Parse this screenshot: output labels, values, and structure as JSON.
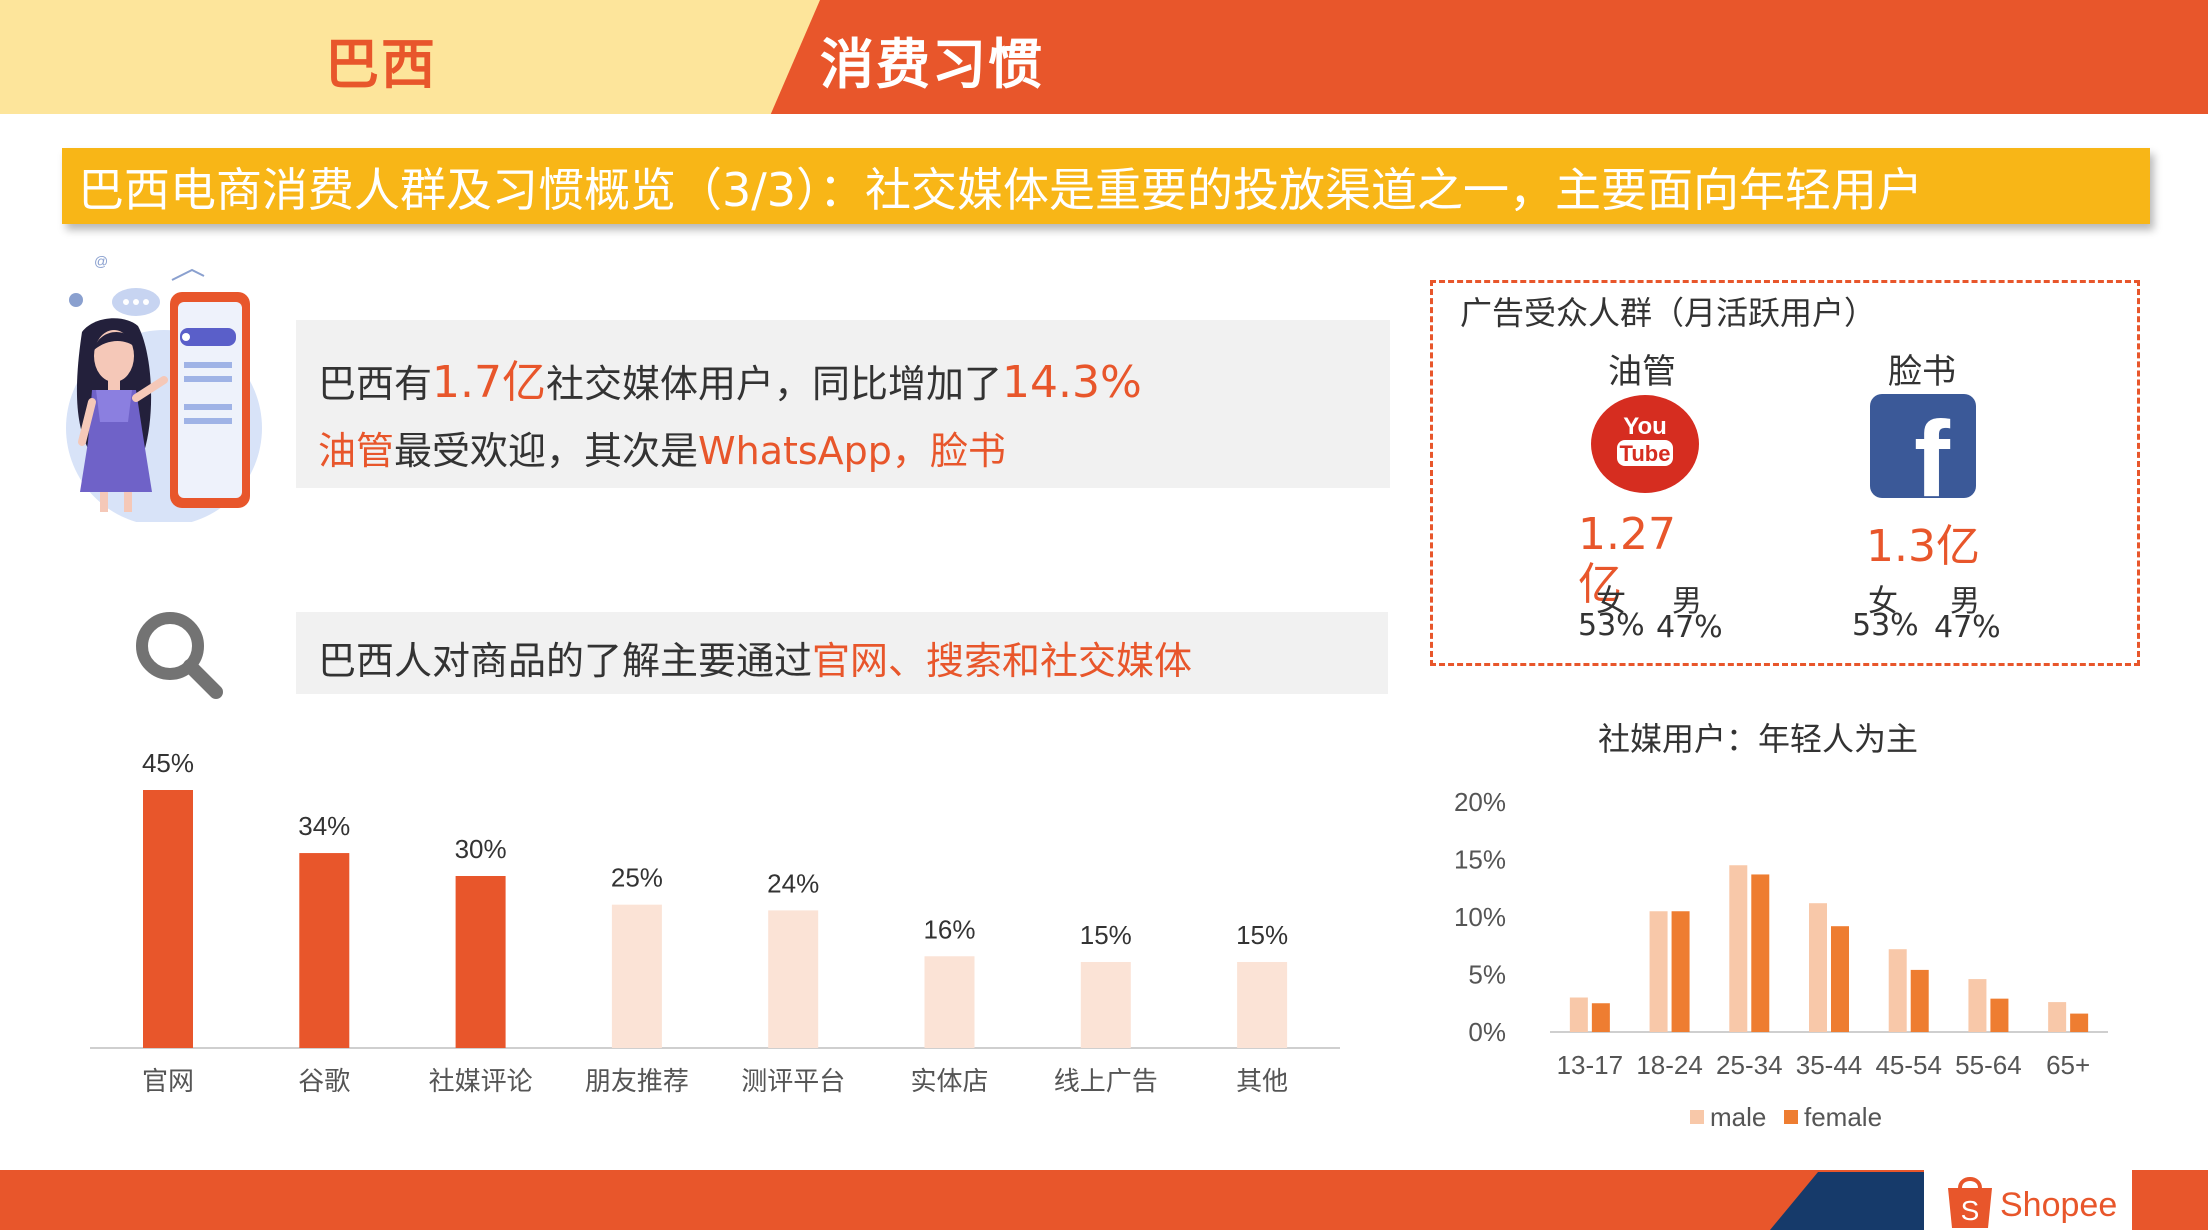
{
  "header": {
    "country": "巴西",
    "section": "消费习惯"
  },
  "title": "巴西电商消费人群及习惯概览（3/3）：社交媒体是重要的投放渠道之一，主要面向年轻用户",
  "info_box_1": {
    "line1_a": "巴西有",
    "line1_b": "1.7亿",
    "line1_c": "社交媒体用户，同比增加了",
    "line1_d": "14.3%",
    "line2_a": "油管",
    "line2_b": "最受欢迎，其次是",
    "line2_c": "WhatsApp，脸书"
  },
  "info_box_2": {
    "text_a": "巴西人对商品的了解主要通过",
    "text_b": "官网、搜索和社交媒体"
  },
  "ad_audience": {
    "heading": "广告受众人群（月活跃用户）",
    "youtube": {
      "name": "油管",
      "logo_top": "You",
      "logo_bottom": "Tube",
      "users": "1.27亿",
      "female_label": "女",
      "male_label": "男",
      "female": "53%",
      "male": "47%"
    },
    "facebook": {
      "name": "脸书",
      "logo": "f",
      "users": "1.3亿",
      "female_label": "女",
      "male_label": "男",
      "female": "53%",
      "male": "47%"
    }
  },
  "age_chart_title": "社媒用户：年轻人为主",
  "brand": {
    "name": "Shopee",
    "bag_letter": "S"
  },
  "icons": [
    "woman-phone-illustration",
    "magnifier-icon",
    "youtube-logo-icon",
    "facebook-logo-icon",
    "shopee-logo-icon"
  ],
  "colors": {
    "orange": "#e8562b",
    "peach": "#fbe3d6",
    "yellow": "#f8b617",
    "navy": "#163a6a",
    "male_bar": "#f8c8a9",
    "female_bar": "#ee7d31"
  },
  "chart_data": [
    {
      "type": "bar",
      "categories": [
        "官网",
        "谷歌",
        "社媒评论",
        "朋友推荐",
        "测评平台",
        "实体店",
        "线上广告",
        "其他"
      ],
      "values": [
        45,
        34,
        30,
        25,
        24,
        16,
        15,
        15
      ],
      "value_labels": [
        "45%",
        "34%",
        "30%",
        "25%",
        "24%",
        "16%",
        "15%",
        "15%"
      ],
      "highlight_colors": [
        "#e8562b",
        "#e8562b",
        "#e8562b",
        "#fbe3d6",
        "#fbe3d6",
        "#fbe3d6",
        "#fbe3d6",
        "#fbe3d6"
      ],
      "unit": "%",
      "ylim": [
        0,
        45
      ],
      "grid": false
    },
    {
      "type": "bar",
      "title": "社媒用户：年轻人为主",
      "categories": [
        "13-17",
        "18-24",
        "25-34",
        "35-44",
        "45-54",
        "55-64",
        "65+"
      ],
      "series": [
        {
          "name": "male",
          "color": "#f8c8a9",
          "values": [
            3,
            10.5,
            14.5,
            11.2,
            7.2,
            4.6,
            2.6
          ]
        },
        {
          "name": "female",
          "color": "#ee7d31",
          "values": [
            2.5,
            10.5,
            13.7,
            9.2,
            5.4,
            2.9,
            1.6
          ]
        }
      ],
      "yticks": [
        "0%",
        "5%",
        "10%",
        "15%",
        "20%"
      ],
      "ylim": [
        0,
        20
      ],
      "legend": "bottom",
      "grid": false
    }
  ]
}
